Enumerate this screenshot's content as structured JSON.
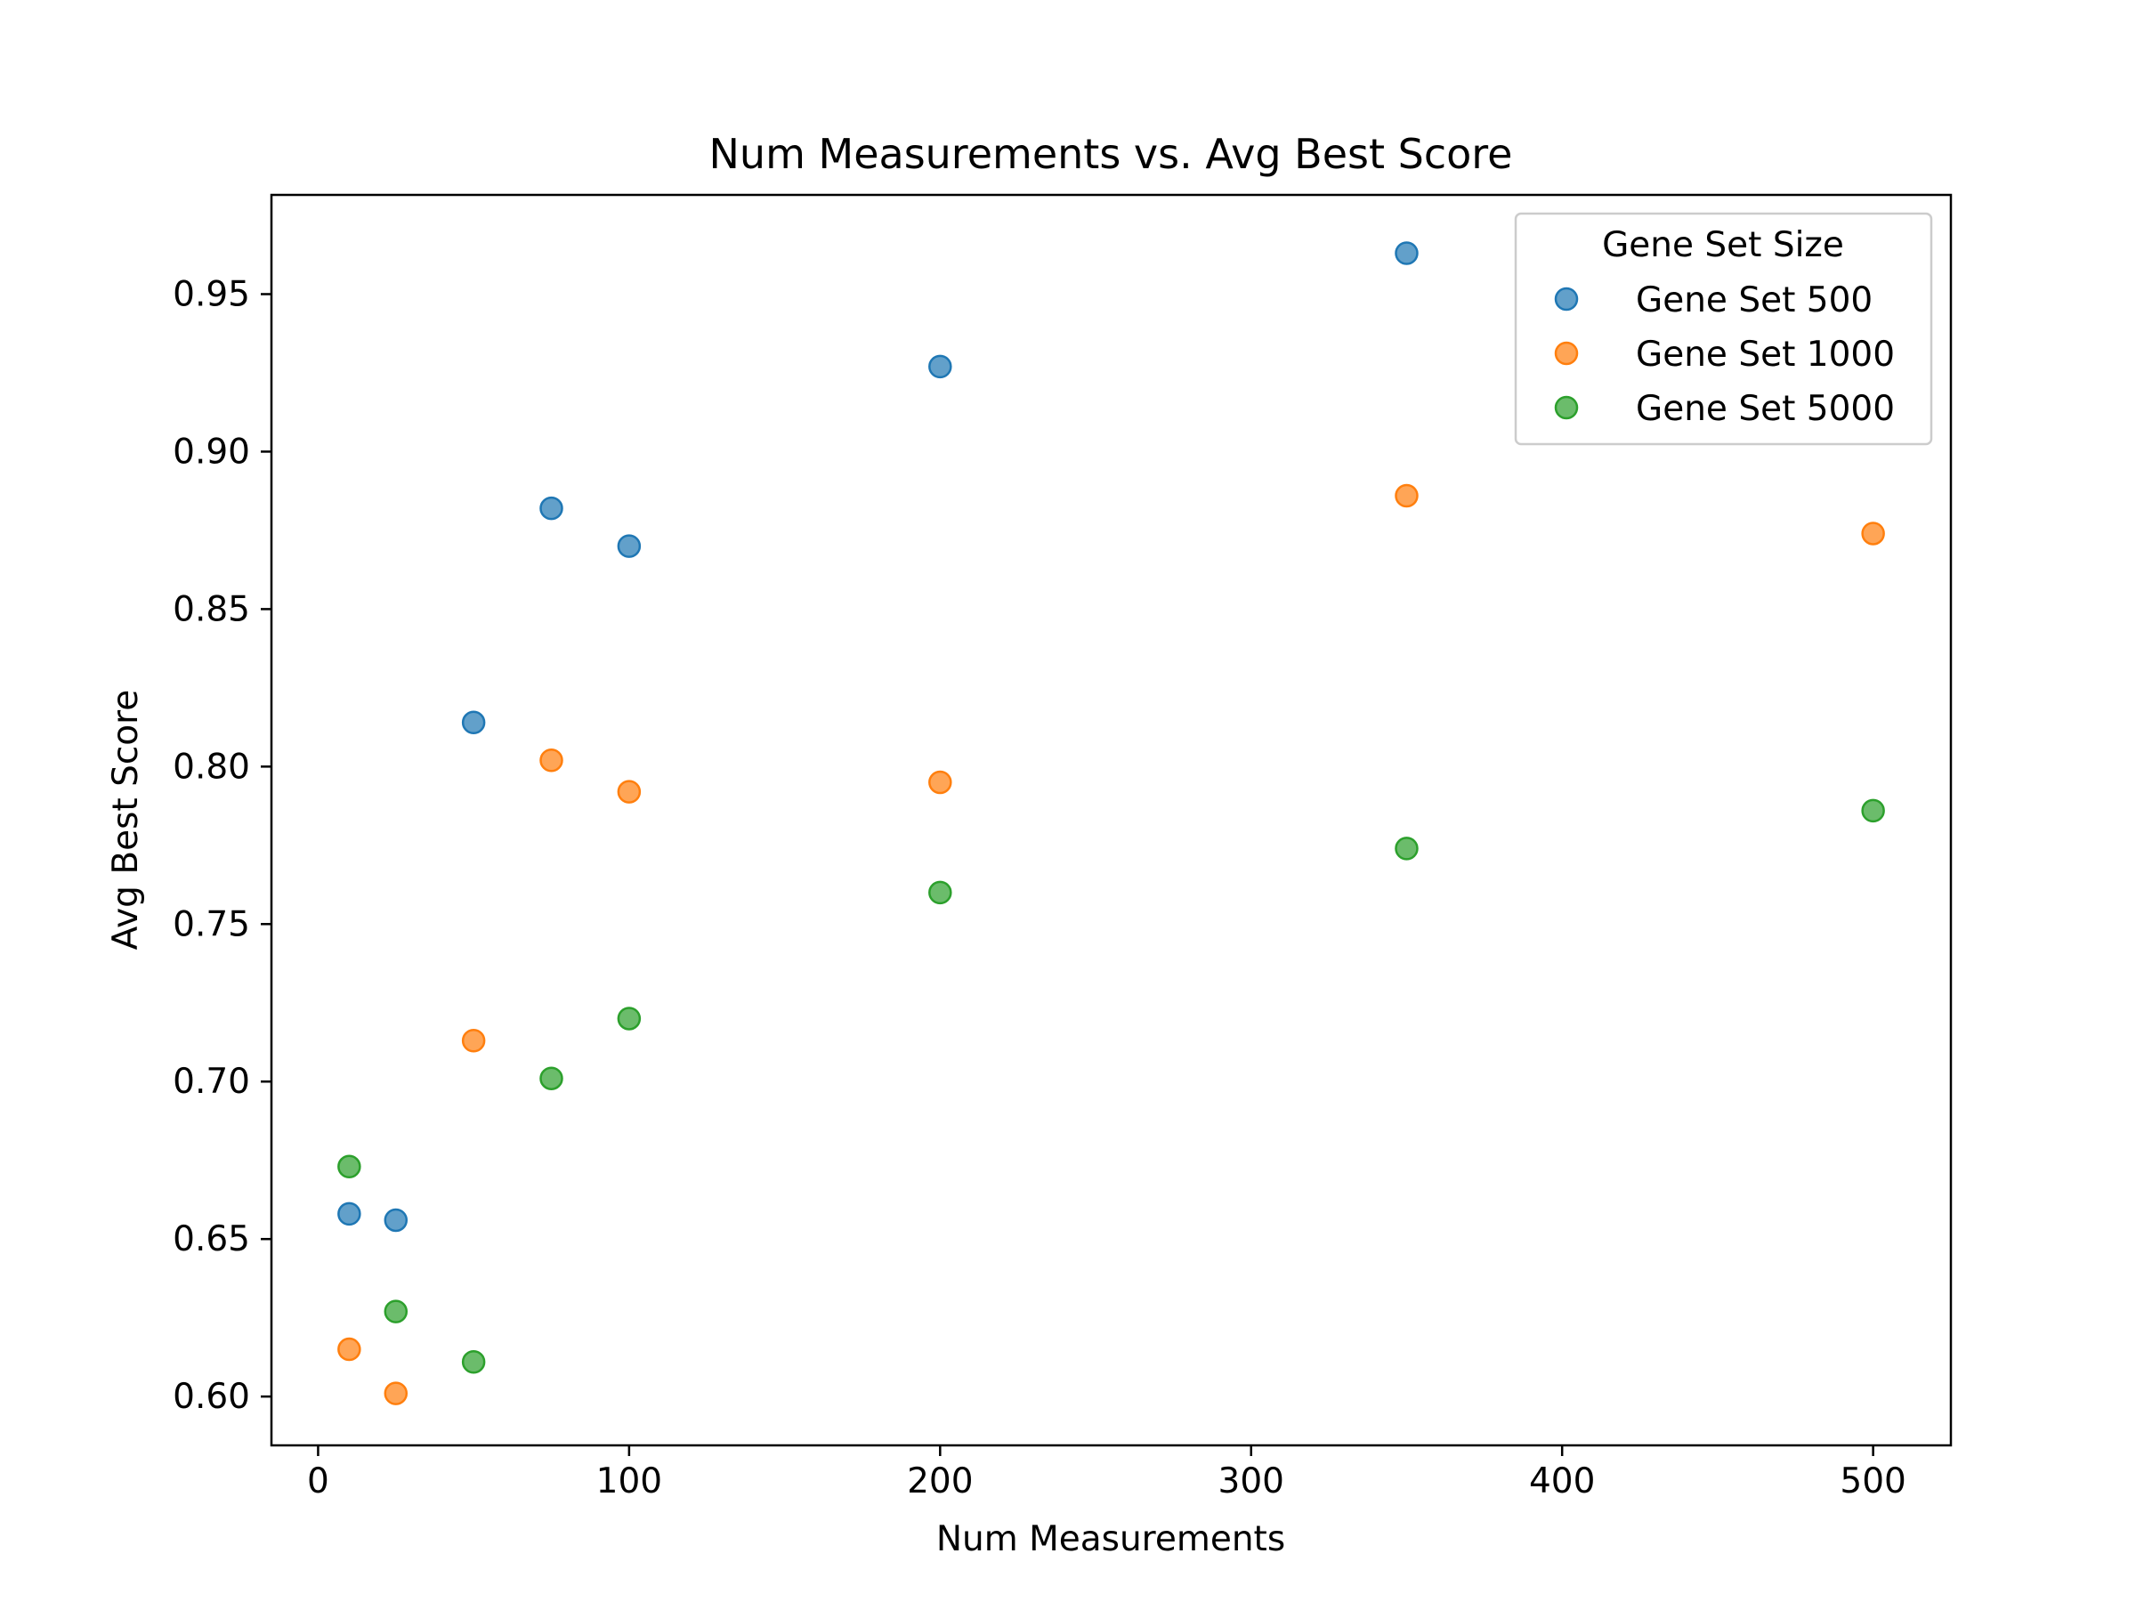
{
  "chart_data": {
    "type": "scatter",
    "title": "Num Measurements vs. Avg Best Score",
    "xlabel": "Num Measurements",
    "ylabel": "Avg Best Score",
    "xlim": [
      -15,
      525
    ],
    "ylim": [
      0.5845,
      0.9815
    ],
    "xticks": [
      0,
      100,
      200,
      300,
      400,
      500
    ],
    "yticks": [
      0.6,
      0.65,
      0.7,
      0.75,
      0.8,
      0.85,
      0.9,
      0.95
    ],
    "grid": false,
    "legend": {
      "title": "Gene Set Size",
      "placement": "top-right"
    },
    "series": [
      {
        "name": "Gene Set 500",
        "color": "#1f77b4",
        "points": [
          {
            "x": 10,
            "y": 0.658
          },
          {
            "x": 25,
            "y": 0.656
          },
          {
            "x": 50,
            "y": 0.814
          },
          {
            "x": 75,
            "y": 0.882
          },
          {
            "x": 100,
            "y": 0.87
          },
          {
            "x": 200,
            "y": 0.927
          },
          {
            "x": 350,
            "y": 0.963
          }
        ]
      },
      {
        "name": "Gene Set 1000",
        "color": "#ff7f0e",
        "points": [
          {
            "x": 10,
            "y": 0.615
          },
          {
            "x": 25,
            "y": 0.601
          },
          {
            "x": 50,
            "y": 0.713
          },
          {
            "x": 75,
            "y": 0.802
          },
          {
            "x": 100,
            "y": 0.792
          },
          {
            "x": 200,
            "y": 0.795
          },
          {
            "x": 350,
            "y": 0.886
          },
          {
            "x": 500,
            "y": 0.874
          }
        ]
      },
      {
        "name": "Gene Set 5000",
        "color": "#2ca02c",
        "points": [
          {
            "x": 10,
            "y": 0.673
          },
          {
            "x": 25,
            "y": 0.627
          },
          {
            "x": 50,
            "y": 0.611
          },
          {
            "x": 75,
            "y": 0.701
          },
          {
            "x": 100,
            "y": 0.72
          },
          {
            "x": 200,
            "y": 0.76
          },
          {
            "x": 350,
            "y": 0.774
          },
          {
            "x": 500,
            "y": 0.786
          }
        ]
      }
    ]
  }
}
